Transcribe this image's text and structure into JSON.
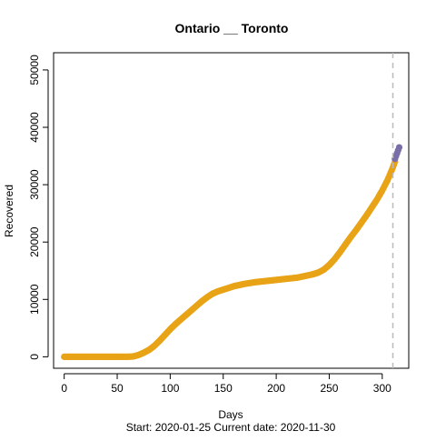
{
  "chart_data": {
    "type": "scatter",
    "title": "Ontario __ Toronto",
    "xlabel": "Days",
    "ylabel": "Recovered",
    "footer": "Start:  2020-01-25   Current date:  2020-11-30",
    "xlim": [
      -10,
      325
    ],
    "ylim": [
      -2000,
      53000
    ],
    "x_ticks": [
      0,
      50,
      100,
      150,
      200,
      250,
      300
    ],
    "y_ticks": [
      0,
      10000,
      20000,
      30000,
      40000,
      50000
    ],
    "grid": false,
    "legend": "none",
    "vline_x": 310,
    "colors": {
      "observed": "#E8A317",
      "projected": "#7A6EA8",
      "vline": "#BBBBBB",
      "axis": "#000000"
    },
    "series": [
      {
        "points": [
          [
            0,
            0
          ],
          [
            10,
            0
          ],
          [
            20,
            0
          ],
          [
            30,
            0
          ],
          [
            40,
            0
          ],
          [
            50,
            0
          ],
          [
            60,
            0
          ],
          [
            65,
            50
          ],
          [
            70,
            300
          ],
          [
            75,
            700
          ],
          [
            80,
            1200
          ],
          [
            85,
            1900
          ],
          [
            90,
            2800
          ],
          [
            95,
            3800
          ],
          [
            100,
            4800
          ],
          [
            105,
            5700
          ],
          [
            110,
            6500
          ],
          [
            115,
            7300
          ],
          [
            120,
            8100
          ],
          [
            125,
            8900
          ],
          [
            130,
            9700
          ],
          [
            135,
            10400
          ],
          [
            140,
            11000
          ],
          [
            145,
            11400
          ],
          [
            150,
            11700
          ],
          [
            155,
            12000
          ],
          [
            160,
            12300
          ],
          [
            165,
            12500
          ],
          [
            170,
            12700
          ],
          [
            175,
            12850
          ],
          [
            180,
            13000
          ],
          [
            185,
            13100
          ],
          [
            190,
            13200
          ],
          [
            195,
            13300
          ],
          [
            200,
            13400
          ],
          [
            205,
            13500
          ],
          [
            210,
            13600
          ],
          [
            215,
            13700
          ],
          [
            220,
            13800
          ],
          [
            225,
            14000
          ],
          [
            230,
            14200
          ],
          [
            235,
            14400
          ],
          [
            240,
            14700
          ],
          [
            245,
            15200
          ],
          [
            250,
            16000
          ],
          [
            255,
            17000
          ],
          [
            260,
            18200
          ],
          [
            265,
            19500
          ],
          [
            270,
            20800
          ],
          [
            275,
            22000
          ],
          [
            280,
            23300
          ],
          [
            285,
            24600
          ],
          [
            290,
            26000
          ],
          [
            295,
            27400
          ],
          [
            300,
            29000
          ],
          [
            305,
            30800
          ],
          [
            310,
            33000
          ],
          [
            312,
            34000
          ]
        ]
      },
      {
        "points": [
          [
            312,
            34500
          ],
          [
            313,
            35000
          ],
          [
            314,
            35500
          ],
          [
            315,
            36000
          ],
          [
            316,
            36500
          ]
        ]
      }
    ]
  }
}
